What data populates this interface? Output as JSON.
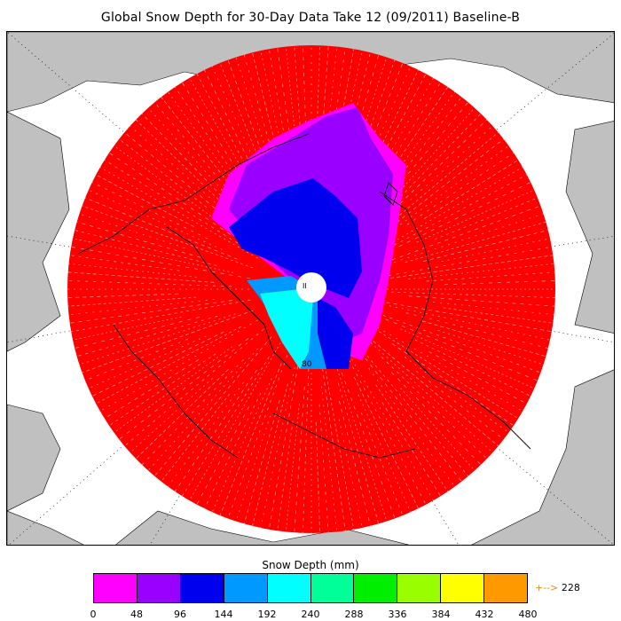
{
  "title": "Global Snow Depth for 30-Day Data Take 12 (09/2011) Baseline-B",
  "colorbar": {
    "title": "Snow Depth (mm)",
    "ticks": [
      "0",
      "48",
      "96",
      "144",
      "192",
      "240",
      "288",
      "336",
      "384",
      "432",
      "480"
    ],
    "colors": [
      "#ff00ff",
      "#9900ff",
      "#0000ee",
      "#0099ff",
      "#00ffff",
      "#00ff99",
      "#00ee00",
      "#99ff00",
      "#ffff00",
      "#ff9900"
    ],
    "max_value": "228",
    "max_arrow": "+-->"
  },
  "map_labels": {
    "pole_marker": "II",
    "latitude_label": "80"
  },
  "colors": {
    "land": "#c0c0c0",
    "ocean": "#ffffff",
    "coverage": "#ff0000",
    "high_depth": "#ff00ff",
    "mid_depth": "#9900ff",
    "deep": "#0000ee",
    "coastline": "#000000"
  }
}
